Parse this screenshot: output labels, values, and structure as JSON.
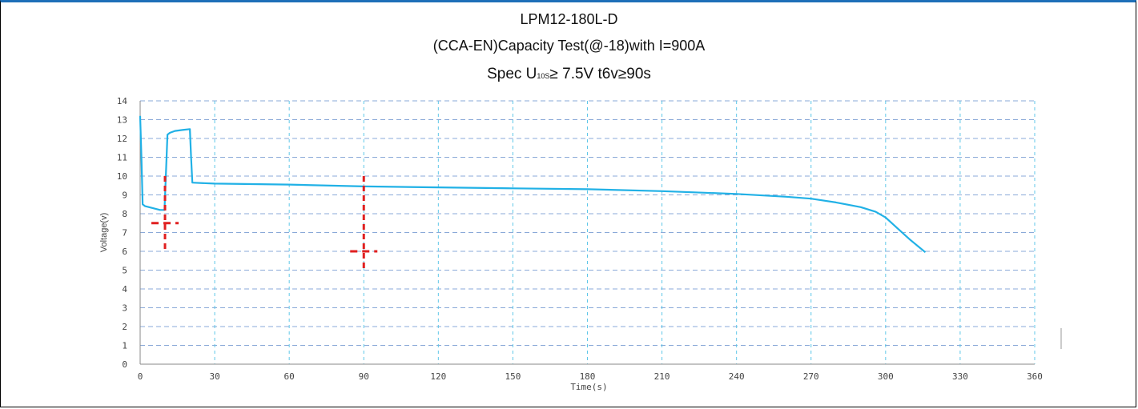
{
  "titles": {
    "line1": "LPM12-180L-D",
    "line2": "(CCA-EN)Capacity Test(@-18)with I=900A",
    "line3_prefix": "Spec U",
    "line3_sub": "10S",
    "line3_suffix": "≥ 7.5V  t6v≥90s"
  },
  "colors": {
    "series": "#21b1e6",
    "grid_h": "#8aa9d8",
    "grid_v": "#5fc7e8",
    "marker": "#e02020"
  },
  "chart_data": {
    "type": "line",
    "title": "LPM12-180L-D",
    "xlabel": "Time(s)",
    "ylabel": "Voltage(v)",
    "xlim": [
      0,
      360
    ],
    "ylim": [
      0,
      14
    ],
    "x_ticks": [
      0,
      30,
      60,
      90,
      120,
      150,
      180,
      210,
      240,
      270,
      300,
      330,
      360
    ],
    "y_ticks": [
      0,
      1,
      2,
      3,
      4,
      5,
      6,
      7,
      8,
      9,
      10,
      11,
      12,
      13,
      14
    ],
    "grid": true,
    "series": [
      {
        "x": [
          0,
          0.5,
          1,
          2,
          5,
          8,
          9.8,
          10.2,
          11,
          12,
          14,
          17,
          20,
          20.5,
          21,
          30,
          60,
          90,
          120,
          150,
          180,
          210,
          240,
          260,
          270,
          280,
          290,
          296,
          300,
          305,
          310,
          316
        ],
        "y": [
          13.2,
          11.0,
          8.5,
          8.4,
          8.3,
          8.2,
          8.2,
          9.5,
          12.2,
          12.3,
          12.4,
          12.45,
          12.5,
          11.0,
          9.65,
          9.6,
          9.55,
          9.45,
          9.4,
          9.35,
          9.3,
          9.2,
          9.05,
          8.9,
          8.8,
          8.6,
          8.35,
          8.1,
          7.8,
          7.2,
          6.6,
          5.95
        ]
      }
    ],
    "markers": [
      {
        "x": 10,
        "y_from": 6,
        "y_to": 10,
        "cross_y": 7.5
      },
      {
        "x": 90,
        "y_from": 5,
        "y_to": 10,
        "cross_y": 6
      }
    ]
  }
}
